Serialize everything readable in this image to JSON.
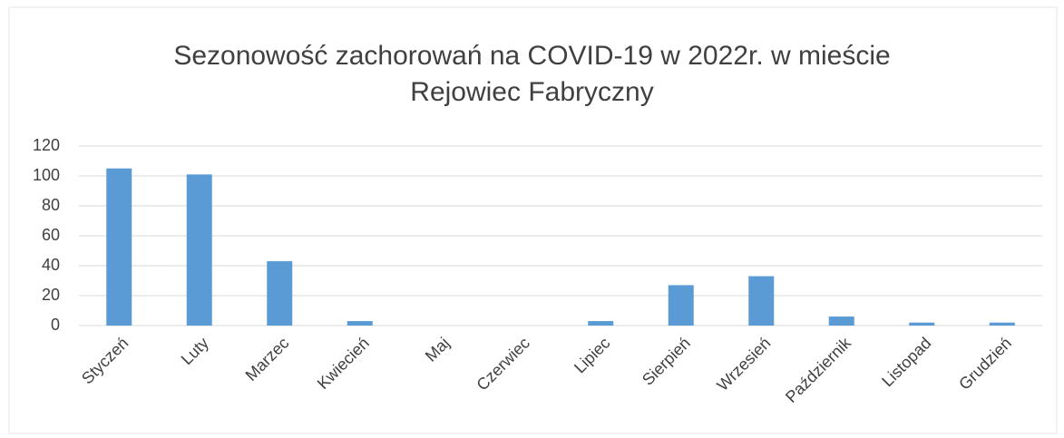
{
  "chart_data": {
    "type": "bar",
    "title": "Sezonowość zachorowań na COVID-19 w 2022r. w mieście Rejowiec Fabryczny",
    "categories": [
      "Styczeń",
      "Luty",
      "Marzec",
      "Kwiecień",
      "Maj",
      "Czerwiec",
      "Lipiec",
      "Sierpień",
      "Wrzesień",
      "Październik",
      "Listopad",
      "Grudzień"
    ],
    "values": [
      105,
      101,
      43,
      3,
      0,
      0,
      3,
      27,
      33,
      6,
      2,
      2
    ],
    "color": "#5b9bd5",
    "ylim": [
      0,
      120
    ],
    "yticks": [
      0,
      20,
      40,
      60,
      80,
      100,
      120
    ],
    "grid": true
  }
}
